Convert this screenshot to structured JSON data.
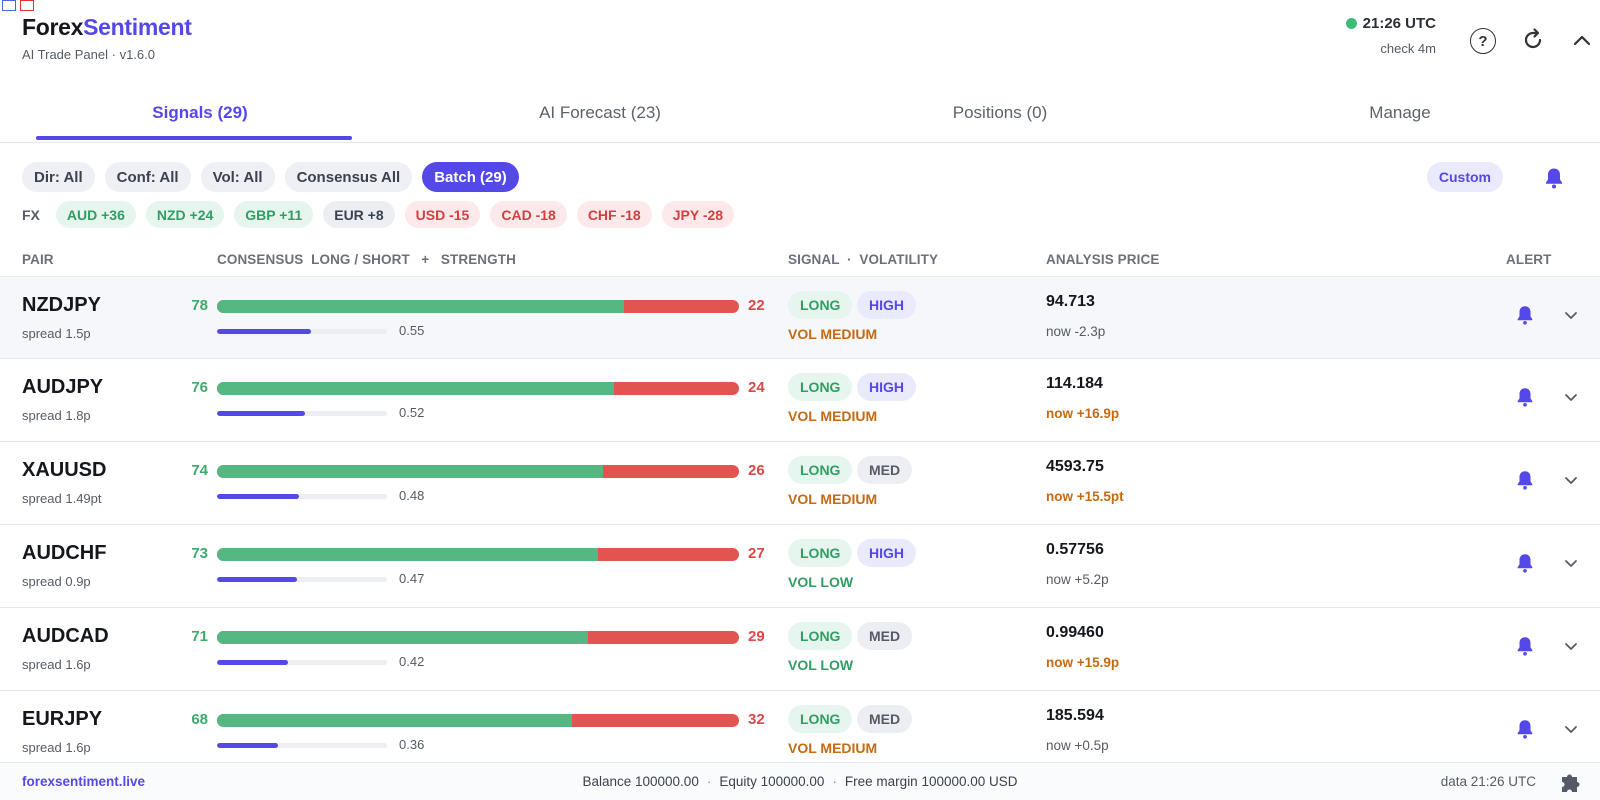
{
  "app": {
    "name_part1": "Forex",
    "name_part2": "Sentiment",
    "subtitle": "AI Trade Panel",
    "version": "v1.6.0"
  },
  "status": {
    "time": "21:26 UTC",
    "check": "check 4m",
    "dot_color": "#3ebc7a"
  },
  "header_icons": [
    "help-icon",
    "refresh-icon",
    "chevron-up-icon"
  ],
  "tabs": [
    {
      "label": "Signals (29)",
      "active": true
    },
    {
      "label": "AI Forecast (23)",
      "active": false
    },
    {
      "label": "Positions (0)",
      "active": false
    },
    {
      "label": "Manage",
      "active": false
    }
  ],
  "filters": [
    {
      "label": "Dir: All",
      "active": false
    },
    {
      "label": "Conf: All",
      "active": false
    },
    {
      "label": "Vol: All",
      "active": false
    },
    {
      "label": "Consensus All",
      "active": false
    },
    {
      "label": "Batch (29)",
      "active": true
    }
  ],
  "custom_label": "Custom",
  "fx": {
    "label": "FX",
    "chips": [
      {
        "label": "AUD +36",
        "tone": "pos"
      },
      {
        "label": "NZD +24",
        "tone": "pos"
      },
      {
        "label": "GBP +11",
        "tone": "pos"
      },
      {
        "label": "EUR +8",
        "tone": "neu"
      },
      {
        "label": "USD -15",
        "tone": "neg"
      },
      {
        "label": "CAD -18",
        "tone": "neg"
      },
      {
        "label": "CHF -18",
        "tone": "neg"
      },
      {
        "label": "JPY -28",
        "tone": "neg"
      }
    ]
  },
  "columns": {
    "pair": "PAIR",
    "consensus": "CONSENSUS  LONG / SHORT   +   STRENGTH",
    "signal": "SIGNAL  ·  VOLATILITY",
    "price": "ANALYSIS PRICE",
    "alert": "ALERT"
  },
  "rows": [
    {
      "pair": "NZDJPY",
      "spread": "spread 1.5p",
      "long": "78",
      "short": "22",
      "long_pct": 78,
      "strength": "0.55",
      "strength_frac": 0.55,
      "signal": "LONG",
      "vol_badge": "HIGH",
      "vol_badge_tone": "high",
      "vol": "VOL MEDIUM",
      "vol_tone": "medium",
      "price": "94.713",
      "delta": "now -2.3p",
      "delta_tone": "gray"
    },
    {
      "pair": "AUDJPY",
      "spread": "spread 1.8p",
      "long": "76",
      "short": "24",
      "long_pct": 76,
      "strength": "0.52",
      "strength_frac": 0.52,
      "signal": "LONG",
      "vol_badge": "HIGH",
      "vol_badge_tone": "high",
      "vol": "VOL MEDIUM",
      "vol_tone": "medium",
      "price": "114.184",
      "delta": "now +16.9p",
      "delta_tone": "orange"
    },
    {
      "pair": "XAUUSD",
      "spread": "spread 1.49pt",
      "long": "74",
      "short": "26",
      "long_pct": 74,
      "strength": "0.48",
      "strength_frac": 0.48,
      "signal": "LONG",
      "vol_badge": "MED",
      "vol_badge_tone": "med",
      "vol": "VOL MEDIUM",
      "vol_tone": "medium",
      "price": "4593.75",
      "delta": "now +15.5pt",
      "delta_tone": "orange"
    },
    {
      "pair": "AUDCHF",
      "spread": "spread 0.9p",
      "long": "73",
      "short": "27",
      "long_pct": 73,
      "strength": "0.47",
      "strength_frac": 0.47,
      "signal": "LONG",
      "vol_badge": "HIGH",
      "vol_badge_tone": "high",
      "vol": "VOL LOW",
      "vol_tone": "low",
      "price": "0.57756",
      "delta": "now +5.2p",
      "delta_tone": "gray"
    },
    {
      "pair": "AUDCAD",
      "spread": "spread 1.6p",
      "long": "71",
      "short": "29",
      "long_pct": 71,
      "strength": "0.42",
      "strength_frac": 0.42,
      "signal": "LONG",
      "vol_badge": "MED",
      "vol_badge_tone": "med",
      "vol": "VOL LOW",
      "vol_tone": "low",
      "price": "0.99460",
      "delta": "now +15.9p",
      "delta_tone": "orange"
    },
    {
      "pair": "EURJPY",
      "spread": "spread 1.6p",
      "long": "68",
      "short": "32",
      "long_pct": 68,
      "strength": "0.36",
      "strength_frac": 0.36,
      "signal": "LONG",
      "vol_badge": "MED",
      "vol_badge_tone": "med",
      "vol": "VOL MEDIUM",
      "vol_tone": "medium",
      "price": "185.594",
      "delta": "now +0.5p",
      "delta_tone": "gray"
    }
  ],
  "footer": {
    "link": "forexsentiment.live",
    "balance": "Balance 100000.00",
    "equity": "Equity 100000.00",
    "free_margin": "Free margin 100000.00 USD",
    "data_time": "data 21:26 UTC"
  },
  "colors": {
    "accent": "#5548e8",
    "long": "#55b882",
    "short": "#e25450",
    "orange": "#c46a12"
  }
}
